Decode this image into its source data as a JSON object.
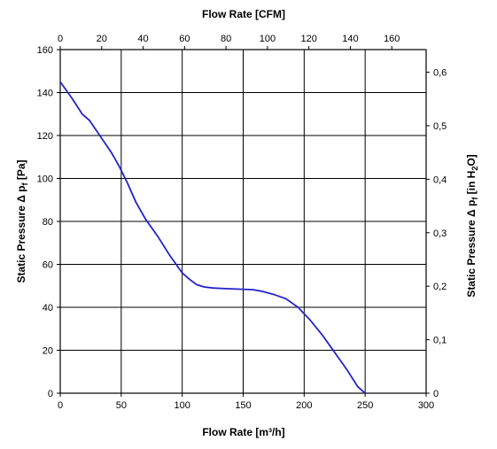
{
  "chart_data": {
    "type": "line",
    "title": "",
    "xlabel": "Flow Rate [m³/h]",
    "x2label": "Flow Rate [CFM]",
    "ylabel": "Static Pressure Δ p_f [Pa]",
    "ylabel_parts": {
      "main": "Static Pressure Δ p",
      "sub": "f",
      "unit": " [Pa]"
    },
    "y2label": "Static Pressure Δ p_f [in H₂O]",
    "y2label_parts": {
      "main": "Static Pressure Δ p",
      "sub": "f",
      "unit_a": " [in H",
      "unit_sub": "2",
      "unit_b": "O]"
    },
    "xlim": [
      0,
      300
    ],
    "ylim": [
      0,
      160
    ],
    "x2lim": [
      0,
      176.57
    ],
    "y2lim": [
      0,
      0.6423
    ],
    "grid": true,
    "line_color": "#2323c8",
    "x_ticks": [
      "0",
      "50",
      "100",
      "150",
      "200",
      "250",
      "300"
    ],
    "y_ticks": [
      "0",
      "20",
      "40",
      "60",
      "80",
      "100",
      "120",
      "140",
      "160"
    ],
    "x2_ticks": [
      "0",
      "20",
      "40",
      "60",
      "80",
      "100",
      "120",
      "140",
      "160"
    ],
    "y2_ticks": [
      "0",
      "0,1",
      "0,2",
      "0,3",
      "0,4",
      "0,5",
      "0,6"
    ],
    "series": [
      {
        "x": [
          0,
          10,
          18,
          24,
          30,
          36,
          42,
          48,
          55,
          62,
          70,
          80,
          90,
          100,
          106,
          112,
          118,
          125,
          135,
          145,
          158,
          165,
          175,
          185,
          195,
          205,
          215,
          225,
          235,
          244,
          250
        ],
        "y": [
          145,
          137,
          130,
          127,
          122,
          117,
          112,
          106,
          98,
          89,
          81,
          73,
          64,
          56,
          53,
          50.5,
          49.5,
          49,
          48.7,
          48.5,
          48.2,
          47.5,
          46,
          44,
          40,
          34,
          27,
          19,
          11,
          3,
          0
        ]
      }
    ]
  }
}
